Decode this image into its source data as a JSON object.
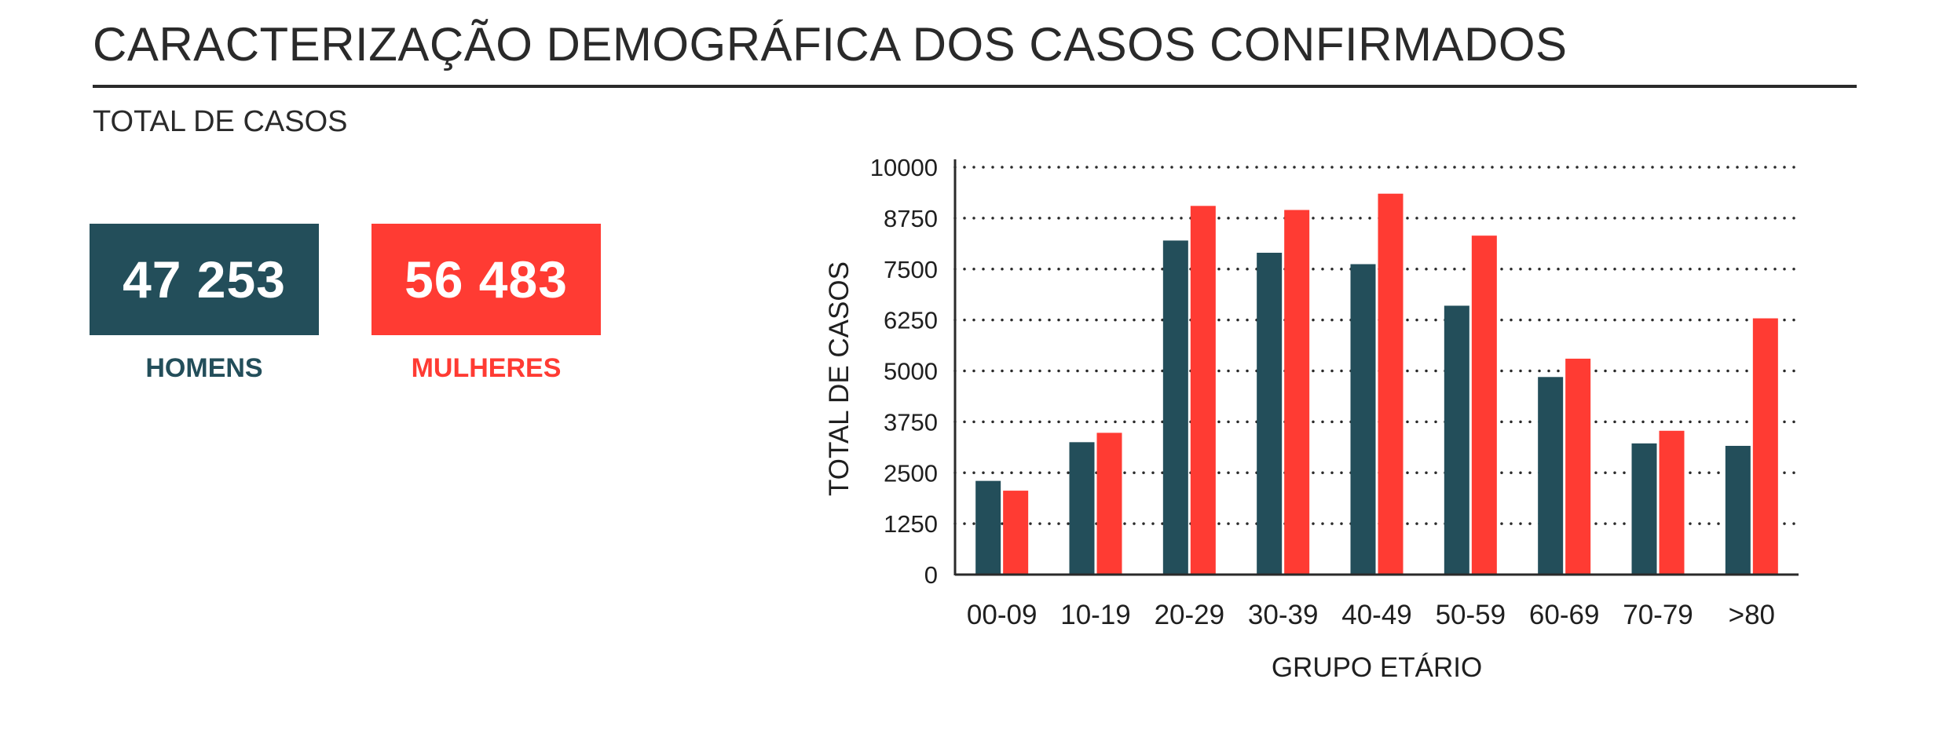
{
  "page": {
    "title": "CARACTERIZAÇÃO DEMOGRÁFICA DOS CASOS CONFIRMADOS",
    "section_label": "TOTAL DE CASOS"
  },
  "stats": {
    "men": {
      "value": "47 253",
      "label": "HOMENS",
      "color": "#234e5a"
    },
    "women": {
      "value": "56 483",
      "label": "MULHERES",
      "color": "#ff3b33"
    }
  },
  "colors": {
    "men": "#234e5a",
    "women": "#ff3b33",
    "grid": "#2a2a2a",
    "text": "#1f1f1f"
  },
  "chart_data": {
    "type": "bar",
    "categories": [
      "00-09",
      "10-19",
      "20-29",
      "30-39",
      "40-49",
      "50-59",
      "60-69",
      "70-79",
      ">80"
    ],
    "series": [
      {
        "key": "men",
        "values": [
          2300,
          3250,
          8200,
          7900,
          7620,
          6600,
          4850,
          3220,
          3160
        ]
      },
      {
        "key": "women",
        "values": [
          2060,
          3480,
          9050,
          8950,
          9350,
          8320,
          5300,
          3530,
          6290
        ]
      }
    ],
    "xlabel": "GRUPO ETÁRIO",
    "ylabel": "TOTAL DE CASOS",
    "ylim": [
      0,
      10000
    ],
    "yticks": [
      "0",
      "1250",
      "2500",
      "3750",
      "5000",
      "6250",
      "7500",
      "8750",
      "10000"
    ],
    "grid": true,
    "grid_style": "dotted",
    "legend": "none"
  }
}
